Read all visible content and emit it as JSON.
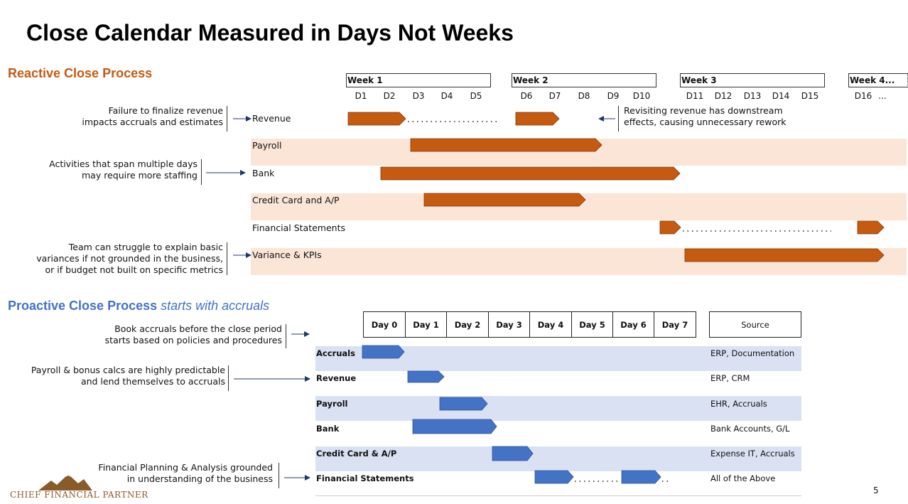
{
  "title": "Close Calendar Measured in Days Not Weeks",
  "colors": {
    "orange": "#C55A11",
    "blue": "#4472C4",
    "orange_band": "#FBE5D6",
    "blue_band": "#D9E1F2"
  },
  "reactive": {
    "title": "Reactive Close Process",
    "weeks": [
      "Week 1",
      "Week 2",
      "Week 3",
      "Week 4..."
    ],
    "days": [
      "D1",
      "D2",
      "D3",
      "D4",
      "D5",
      "D6",
      "D7",
      "D8",
      "D9",
      "D10",
      "D11",
      "D12",
      "D13",
      "D14",
      "D15",
      "D16",
      "..."
    ],
    "rows": [
      "Revenue",
      "Payroll",
      "Bank",
      "Credit Card and A/P",
      "Financial Statements",
      "Variance & KPIs"
    ],
    "notes": {
      "failure_1": "Failure to finalize revenue",
      "failure_2": "impacts accruals and estimates",
      "activities_1": "Activities that span multiple days",
      "activities_2": "may require more staffing",
      "team_1": "Team can struggle to explain basic",
      "team_2": "variances if not grounded in the business,",
      "team_3": "or if budget not built on specific metrics",
      "revisit_1": "Revisiting revenue has downstream",
      "revisit_2": "effects, causing unnecessary rework"
    }
  },
  "proactive": {
    "title_main": "Proactive Close Process",
    "title_italic": "starts with accruals",
    "days": [
      "Day 0",
      "Day 1",
      "Day 2",
      "Day 3",
      "Day 4",
      "Day 5",
      "Day 6",
      "Day 7"
    ],
    "source_header": "Source",
    "rows": [
      {
        "label": "Accruals",
        "source": "ERP, Documentation"
      },
      {
        "label": "Revenue",
        "source": "ERP, CRM"
      },
      {
        "label": "Payroll",
        "source": "EHR, Accruals"
      },
      {
        "label": "Bank",
        "source": "Bank Accounts, G/L"
      },
      {
        "label": "Credit Card & A/P",
        "source": "Expense IT, Accruals"
      },
      {
        "label": "Financial Statements",
        "source": "All of the Above"
      }
    ],
    "notes": {
      "book_1": "Book accruals before the close period",
      "book_2": "starts based on policies and procedures",
      "payroll_1": "Payroll & bonus calcs are highly predictable",
      "payroll_2": "and lend themselves to accruals",
      "fpa_1": "Financial Planning & Analysis grounded",
      "fpa_2": "in understanding of the business"
    }
  },
  "logo_text": "CHIEF FINANCIAL PARTNER",
  "page_number": "5"
}
